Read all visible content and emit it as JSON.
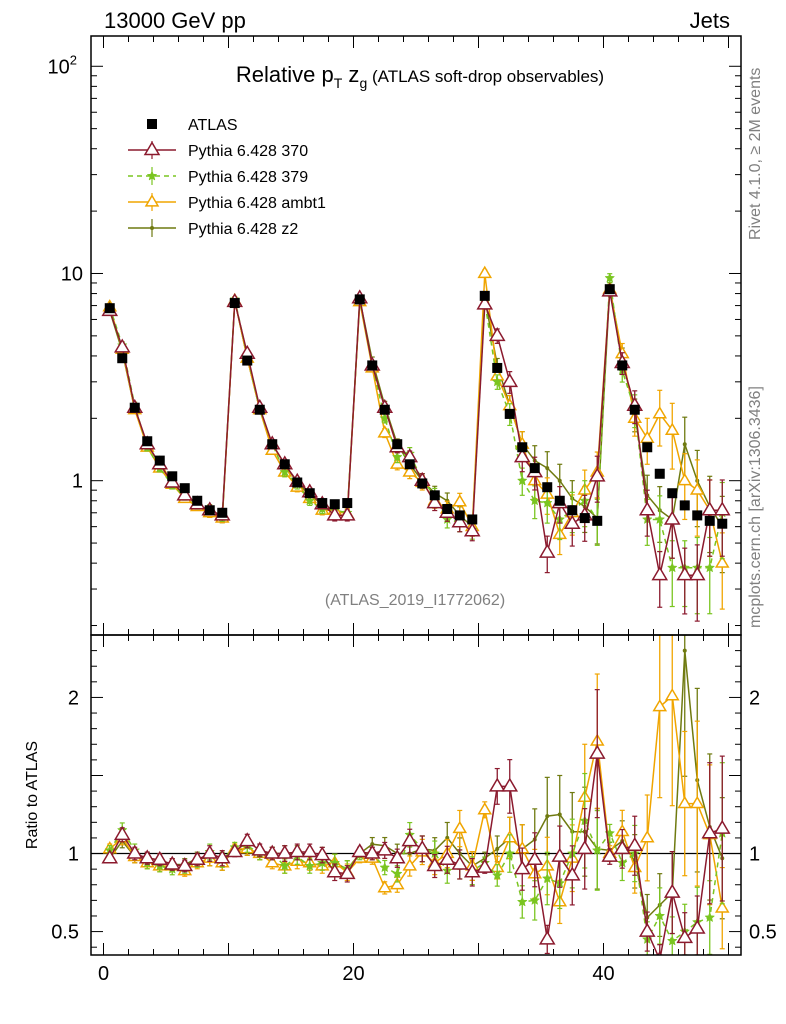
{
  "header": {
    "left": "13000 GeV pp",
    "right": "Jets"
  },
  "side_text": {
    "rivet": "Rivet 4.1.0, ≥ 2M events",
    "mcplots": "mcplots.cern.ch [arXiv:1306.3436]"
  },
  "colors": {
    "atlas": "#000000",
    "p370": "#8b1a2e",
    "p379": "#7ac520",
    "ambt1": "#f0a500",
    "z2": "#6f7a10"
  },
  "chart_data": {
    "type": "scatter",
    "title": "Relative p",
    "title_sub": "T",
    "title_mid": " z",
    "title_sub2": "g",
    "title_suffix": " (ATLAS soft-drop observables)",
    "analysis_id": "(ATLAS_2019_I1772062)",
    "xlim": [
      -1,
      51
    ],
    "ylim_main": [
      0.18,
      140
    ],
    "ylim_ratio": [
      0.35,
      2.4
    ],
    "main_y_ticks": [
      {
        "value": 100,
        "label": "10",
        "sup": "2"
      },
      {
        "value": 10,
        "label": "10",
        "sup": ""
      },
      {
        "value": 1,
        "label": "1",
        "sup": ""
      }
    ],
    "ratio_y_ticks": [
      {
        "value": 2,
        "label": "2"
      },
      {
        "value": 1,
        "label": "1"
      },
      {
        "value": 0.5,
        "label": "0.5"
      }
    ],
    "x_ticks": [
      {
        "value": 0,
        "label": "0"
      },
      {
        "value": 20,
        "label": "20"
      },
      {
        "value": 40,
        "label": "40"
      }
    ],
    "ratio_ylabel": "Ratio to ATLAS",
    "x": [
      0.5,
      1.5,
      2.5,
      3.5,
      4.5,
      5.5,
      6.5,
      7.5,
      8.5,
      9.5,
      10.5,
      11.5,
      12.5,
      13.5,
      14.5,
      15.5,
      16.5,
      17.5,
      18.5,
      19.5,
      20.5,
      21.5,
      22.5,
      23.5,
      24.5,
      25.5,
      26.5,
      27.5,
      28.5,
      29.5,
      30.5,
      31.5,
      32.5,
      33.5,
      34.5,
      35.5,
      36.5,
      37.5,
      38.5,
      39.5,
      40.5,
      41.5,
      42.5,
      43.5,
      44.5,
      45.5,
      46.5,
      47.5,
      48.5,
      49.5
    ],
    "data": {
      "name": "ATLAS",
      "values": [
        6.8,
        3.9,
        2.25,
        1.55,
        1.25,
        1.05,
        0.92,
        0.8,
        0.72,
        0.7,
        7.2,
        3.8,
        2.2,
        1.5,
        1.2,
        0.98,
        0.87,
        0.78,
        0.77,
        0.78,
        7.5,
        3.6,
        2.2,
        1.5,
        1.2,
        0.97,
        0.85,
        0.73,
        0.68,
        0.65,
        7.8,
        3.5,
        2.1,
        1.45,
        1.15,
        0.93,
        0.8,
        0.72,
        0.66,
        0.64,
        8.4,
        3.6,
        2.2,
        1.45,
        1.08,
        0.87,
        0.76,
        0.68,
        0.64,
        0.62
      ]
    },
    "series": [
      {
        "name": "Pythia 6.428 370",
        "style": "p370",
        "values": [
          6.6,
          4.4,
          2.25,
          1.5,
          1.2,
          0.98,
          0.85,
          0.77,
          0.72,
          0.68,
          7.3,
          4.1,
          2.25,
          1.5,
          1.2,
          0.99,
          0.88,
          0.77,
          0.68,
          0.68,
          7.6,
          3.6,
          2.25,
          1.45,
          1.3,
          1.0,
          0.78,
          0.7,
          0.63,
          0.57,
          7.1,
          5.0,
          3.0,
          1.3,
          1.1,
          0.45,
          0.78,
          0.62,
          0.68,
          1.05,
          8.2,
          3.7,
          2.3,
          0.72,
          0.35,
          0.65,
          0.35,
          0.35,
          0.72,
          0.72
        ],
        "ratio": [
          0.97,
          1.12,
          1.0,
          0.97,
          0.96,
          0.93,
          0.92,
          0.96,
          1.0,
          0.97,
          1.01,
          1.08,
          1.02,
          1.0,
          1.0,
          1.01,
          1.01,
          0.99,
          0.88,
          0.87,
          1.01,
          1.0,
          1.02,
          0.97,
          1.08,
          1.03,
          0.92,
          0.96,
          0.93,
          0.88,
          0.91,
          1.43,
          1.43,
          0.9,
          0.96,
          0.45,
          0.98,
          0.86,
          1.03,
          1.64,
          0.98,
          1.03,
          1.05,
          0.5,
          0.32,
          0.75,
          0.46,
          0.52,
          1.13,
          1.16
        ],
        "err": [
          0.03,
          0.04,
          0.04,
          0.04,
          0.04,
          0.04,
          0.04,
          0.04,
          0.05,
          0.05,
          0.03,
          0.04,
          0.04,
          0.04,
          0.05,
          0.05,
          0.05,
          0.05,
          0.06,
          0.06,
          0.03,
          0.04,
          0.05,
          0.06,
          0.07,
          0.08,
          0.08,
          0.09,
          0.1,
          0.1,
          0.04,
          0.08,
          0.12,
          0.15,
          0.18,
          0.2,
          0.2,
          0.22,
          0.25,
          0.25,
          0.05,
          0.12,
          0.18,
          0.25,
          0.3,
          0.35,
          0.35,
          0.4,
          0.4,
          0.4
        ]
      },
      {
        "name": "Pythia 6.428 379",
        "style": "p379",
        "values": [
          6.9,
          4.5,
          2.3,
          1.45,
          1.15,
          0.95,
          0.84,
          0.76,
          0.73,
          0.67,
          7.5,
          4.0,
          2.2,
          1.5,
          1.1,
          0.96,
          0.8,
          0.73,
          0.72,
          0.7,
          7.4,
          3.6,
          2.0,
          1.3,
          1.35,
          1.0,
          0.85,
          0.65,
          0.63,
          0.58,
          7.3,
          3.0,
          2.1,
          1.0,
          0.8,
          0.78,
          0.65,
          0.72,
          0.8,
          0.65,
          9.5,
          3.4,
          2.2,
          0.65,
          0.65,
          0.38,
          0.38,
          0.38,
          0.38,
          0.7
        ],
        "ratio": [
          1.02,
          1.15,
          1.02,
          0.94,
          0.92,
          0.9,
          0.91,
          0.95,
          1.01,
          0.96,
          1.04,
          1.05,
          1.0,
          1.0,
          0.92,
          0.98,
          0.92,
          0.94,
          0.94,
          0.9,
          0.99,
          1.0,
          0.91,
          0.87,
          1.12,
          1.03,
          1.0,
          0.89,
          0.93,
          0.89,
          0.94,
          0.86,
          1.0,
          0.69,
          0.7,
          0.84,
          0.81,
          1.0,
          1.21,
          1.02,
          1.13,
          0.94,
          1.0,
          0.45,
          0.6,
          0.44,
          0.5,
          0.56,
          0.59,
          1.13
        ],
        "err": [
          0.03,
          0.04,
          0.04,
          0.04,
          0.04,
          0.04,
          0.04,
          0.04,
          0.05,
          0.05,
          0.03,
          0.04,
          0.04,
          0.04,
          0.05,
          0.05,
          0.05,
          0.05,
          0.06,
          0.06,
          0.03,
          0.04,
          0.05,
          0.06,
          0.07,
          0.08,
          0.08,
          0.09,
          0.1,
          0.1,
          0.04,
          0.08,
          0.12,
          0.15,
          0.18,
          0.2,
          0.2,
          0.22,
          0.25,
          0.25,
          0.05,
          0.12,
          0.18,
          0.25,
          0.3,
          0.35,
          0.35,
          0.4,
          0.4,
          0.4
        ]
      },
      {
        "name": "Pythia 6.428 ambt1",
        "style": "ambt1",
        "values": [
          6.9,
          4.3,
          2.2,
          1.45,
          1.15,
          0.96,
          0.82,
          0.75,
          0.7,
          0.66,
          7.4,
          3.9,
          2.2,
          1.4,
          1.1,
          0.93,
          0.82,
          0.72,
          0.72,
          0.69,
          7.3,
          3.5,
          1.7,
          1.2,
          1.1,
          0.98,
          0.8,
          0.73,
          0.79,
          0.6,
          10.0,
          3.2,
          2.3,
          1.5,
          1.0,
          0.86,
          0.55,
          0.7,
          0.9,
          1.1,
          8.4,
          4.1,
          2.0,
          1.6,
          2.1,
          1.75,
          1.0,
          0.9,
          0.72,
          0.4
        ],
        "ratio": [
          1.03,
          1.1,
          0.98,
          0.94,
          0.92,
          0.92,
          0.89,
          0.94,
          0.97,
          0.94,
          1.03,
          1.03,
          1.0,
          0.94,
          0.92,
          0.95,
          0.94,
          0.92,
          0.94,
          0.88,
          0.97,
          0.97,
          0.78,
          0.8,
          0.92,
          1.01,
          0.94,
          1.0,
          1.16,
          0.92,
          1.28,
          0.91,
          1.1,
          1.03,
          0.87,
          0.92,
          0.69,
          0.97,
          1.36,
          1.72,
          1.0,
          1.14,
          0.91,
          1.1,
          1.94,
          2.01,
          1.32,
          1.32,
          1.12,
          0.65
        ],
        "err": [
          0.03,
          0.04,
          0.04,
          0.04,
          0.04,
          0.04,
          0.04,
          0.04,
          0.05,
          0.05,
          0.03,
          0.04,
          0.04,
          0.04,
          0.05,
          0.05,
          0.05,
          0.05,
          0.06,
          0.06,
          0.03,
          0.04,
          0.05,
          0.06,
          0.07,
          0.08,
          0.08,
          0.09,
          0.1,
          0.1,
          0.04,
          0.08,
          0.12,
          0.15,
          0.18,
          0.2,
          0.2,
          0.22,
          0.25,
          0.25,
          0.05,
          0.12,
          0.18,
          0.25,
          0.3,
          0.35,
          0.35,
          0.4,
          0.4,
          0.4
        ]
      },
      {
        "name": "Pythia 6.428 z2",
        "style": "z2",
        "values": [
          6.6,
          4.2,
          2.2,
          1.5,
          1.2,
          0.97,
          0.85,
          0.78,
          0.7,
          0.66,
          7.4,
          3.9,
          2.2,
          1.5,
          1.2,
          0.98,
          0.85,
          0.77,
          0.72,
          0.7,
          7.5,
          3.8,
          2.3,
          1.5,
          1.2,
          1.0,
          0.87,
          0.8,
          0.68,
          0.6,
          7.6,
          3.6,
          2.3,
          1.5,
          1.25,
          1.15,
          1.0,
          0.82,
          0.75,
          0.66,
          8.6,
          3.9,
          2.1,
          0.85,
          0.72,
          0.65,
          1.5,
          1.0,
          0.75,
          0.6
        ],
        "ratio": [
          0.97,
          1.08,
          0.98,
          0.97,
          0.96,
          0.93,
          0.93,
          0.97,
          0.97,
          0.94,
          1.02,
          1.03,
          1.0,
          1.0,
          1.0,
          1.0,
          0.98,
          0.99,
          0.94,
          0.9,
          1.0,
          1.06,
          1.05,
          1.0,
          1.0,
          1.03,
          1.02,
          1.1,
          1.0,
          0.92,
          0.97,
          1.03,
          1.1,
          1.03,
          1.09,
          1.24,
          1.25,
          1.14,
          1.14,
          1.03,
          1.02,
          1.08,
          0.95,
          0.59,
          0.67,
          0.75,
          2.3,
          1.47,
          1.17,
          0.97
        ],
        "err": [
          0.03,
          0.04,
          0.04,
          0.04,
          0.04,
          0.04,
          0.04,
          0.04,
          0.05,
          0.05,
          0.03,
          0.04,
          0.04,
          0.04,
          0.05,
          0.05,
          0.05,
          0.05,
          0.06,
          0.06,
          0.03,
          0.04,
          0.05,
          0.06,
          0.07,
          0.08,
          0.08,
          0.09,
          0.1,
          0.1,
          0.04,
          0.08,
          0.12,
          0.15,
          0.18,
          0.2,
          0.2,
          0.22,
          0.25,
          0.25,
          0.05,
          0.12,
          0.18,
          0.25,
          0.3,
          0.35,
          0.35,
          0.4,
          0.4,
          0.4
        ]
      }
    ]
  }
}
